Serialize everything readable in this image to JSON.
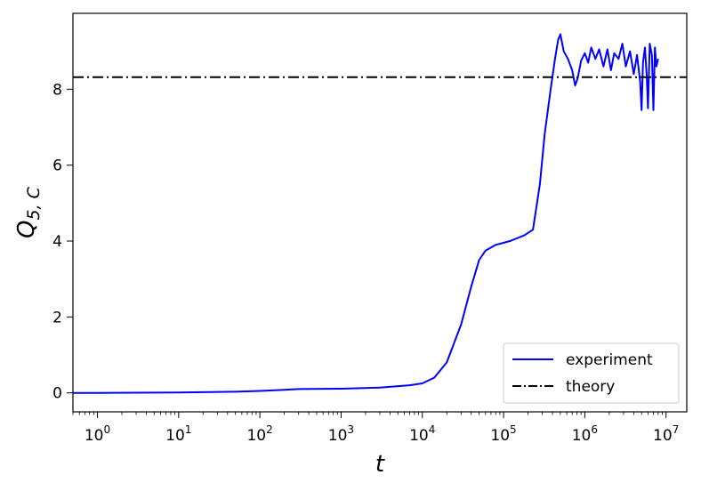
{
  "chart_data": {
    "type": "line",
    "xscale": "log",
    "xlim": [
      0.5,
      18000000
    ],
    "ylim": [
      -0.5,
      10.0
    ],
    "xlabel": "t",
    "ylabel_main": "Q",
    "ylabel_sub": "5, C",
    "x_tick_values": [
      1,
      10,
      100,
      1000,
      10000,
      100000,
      1000000,
      10000000
    ],
    "x_tick_exponents": [
      "0",
      "1",
      "2",
      "3",
      "4",
      "5",
      "6",
      "7"
    ],
    "x_tick_base": "10",
    "y_ticks": [
      0,
      2,
      4,
      6,
      8
    ],
    "grid": false,
    "legend_position": "lower right",
    "series": [
      {
        "name": "experiment",
        "color": "#0000ff",
        "style": "solid",
        "points": [
          [
            0.5,
            0.0
          ],
          [
            1,
            0.0
          ],
          [
            10,
            0.01
          ],
          [
            50,
            0.03
          ],
          [
            100,
            0.05
          ],
          [
            200,
            0.08
          ],
          [
            300,
            0.1
          ],
          [
            1000,
            0.11
          ],
          [
            3000,
            0.14
          ],
          [
            7000,
            0.2
          ],
          [
            10000,
            0.25
          ],
          [
            14000,
            0.4
          ],
          [
            20000,
            0.8
          ],
          [
            30000,
            1.8
          ],
          [
            40000,
            2.8
          ],
          [
            50000,
            3.5
          ],
          [
            60000,
            3.75
          ],
          [
            80000,
            3.9
          ],
          [
            120000,
            4.0
          ],
          [
            180000,
            4.15
          ],
          [
            230000,
            4.3
          ],
          [
            280000,
            5.5
          ],
          [
            320000,
            6.8
          ],
          [
            380000,
            8.0
          ],
          [
            430000,
            8.8
          ],
          [
            470000,
            9.3
          ],
          [
            500000,
            9.45
          ],
          [
            550000,
            9.0
          ],
          [
            620000,
            8.8
          ],
          [
            700000,
            8.5
          ],
          [
            760000,
            8.1
          ],
          [
            820000,
            8.3
          ],
          [
            900000,
            8.75
          ],
          [
            1000000,
            8.95
          ],
          [
            1100000,
            8.7
          ],
          [
            1200000,
            9.1
          ],
          [
            1350000,
            8.8
          ],
          [
            1500000,
            9.05
          ],
          [
            1700000,
            8.6
          ],
          [
            1900000,
            9.05
          ],
          [
            2100000,
            8.5
          ],
          [
            2300000,
            8.95
          ],
          [
            2600000,
            8.8
          ],
          [
            2900000,
            9.2
          ],
          [
            3200000,
            8.6
          ],
          [
            3600000,
            9.0
          ],
          [
            4000000,
            8.4
          ],
          [
            4400000,
            8.9
          ],
          [
            4800000,
            8.2
          ],
          [
            5000000,
            7.45
          ],
          [
            5200000,
            8.7
          ],
          [
            5500000,
            9.1
          ],
          [
            5800000,
            8.3
          ],
          [
            6000000,
            7.5
          ],
          [
            6300000,
            9.2
          ],
          [
            6700000,
            8.9
          ],
          [
            7000000,
            7.45
          ],
          [
            7300000,
            9.1
          ],
          [
            7600000,
            8.6
          ],
          [
            8000000,
            8.8
          ]
        ]
      },
      {
        "name": "theory",
        "color": "#000000",
        "style": "dashdot",
        "points": [
          [
            0.5,
            8.32
          ],
          [
            18000000,
            8.32
          ]
        ]
      }
    ]
  }
}
